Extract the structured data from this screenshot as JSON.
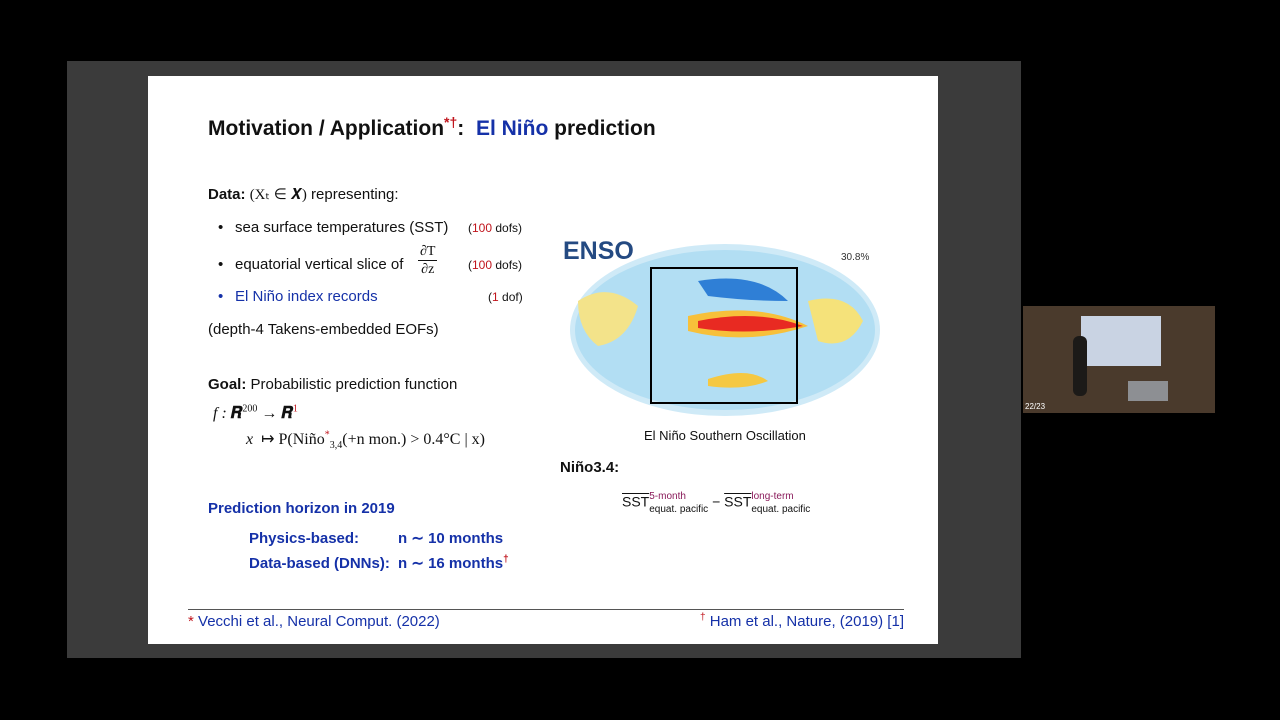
{
  "window": {
    "page_counter": "22/23"
  },
  "slide": {
    "title": {
      "main": "Motivation / Application",
      "marks": "*†",
      "colon": ":",
      "highlight": "El Niño",
      "rest": "prediction"
    },
    "data": {
      "label": "Data:",
      "expr": "(Xₜ ∈ 𝑿)",
      "text": "representing:",
      "items": [
        {
          "text": "sea surface temperatures (SST)",
          "paren": "(",
          "number": "100",
          "unit": "dofs)"
        },
        {
          "text": "equatorial vertical slice of",
          "frac_num": "∂T",
          "frac_den": "∂z",
          "paren": "(",
          "number": "100",
          "unit": "dofs)"
        },
        {
          "text": "El Niño index records",
          "paren": "(",
          "number": "1",
          "unit": "dof)"
        }
      ],
      "note": "(depth-4 Takens-embedded EOFs)"
    },
    "goal": {
      "label": "Goal:",
      "text": "Probabilistic prediction function",
      "line1": {
        "map": "f :",
        "domain": "𝑹",
        "domain_exp": "200",
        "arrow": "→",
        "codomain": "𝑹",
        "codomain_exp": "1"
      },
      "line2": {
        "var": "x",
        "maps": "↦ P(Niño",
        "star": "*",
        "sub": "3,4",
        "rest": "(+n mon.) > 0.4°C | x)"
      }
    },
    "horizon": {
      "title": "Prediction horizon in 2019",
      "rows": [
        {
          "label": "Physics-based:",
          "value": "n ∼ 10 months",
          "mark": ""
        },
        {
          "label": "Data-based (DNNs):",
          "value": "n ∼ 16 months",
          "mark": "†"
        }
      ]
    },
    "figure": {
      "title": "ENSO",
      "percent": "30.8%",
      "caption": "El Niño Southern Oscillation"
    },
    "nino": {
      "label": "Niño3.4:",
      "term1": {
        "symbol": "SST",
        "sup": "5-month",
        "sub": "equat. pacific"
      },
      "minus": "−",
      "term2": {
        "symbol": "SST",
        "sup": "long-term",
        "sub": "equat. pacific"
      }
    },
    "footer": {
      "left_mark": "*",
      "left": "Vecchi et al., Neural Comput. (2022)",
      "right_mark": "†",
      "right": "Ham et al., Nature, (2019) [1]"
    }
  }
}
